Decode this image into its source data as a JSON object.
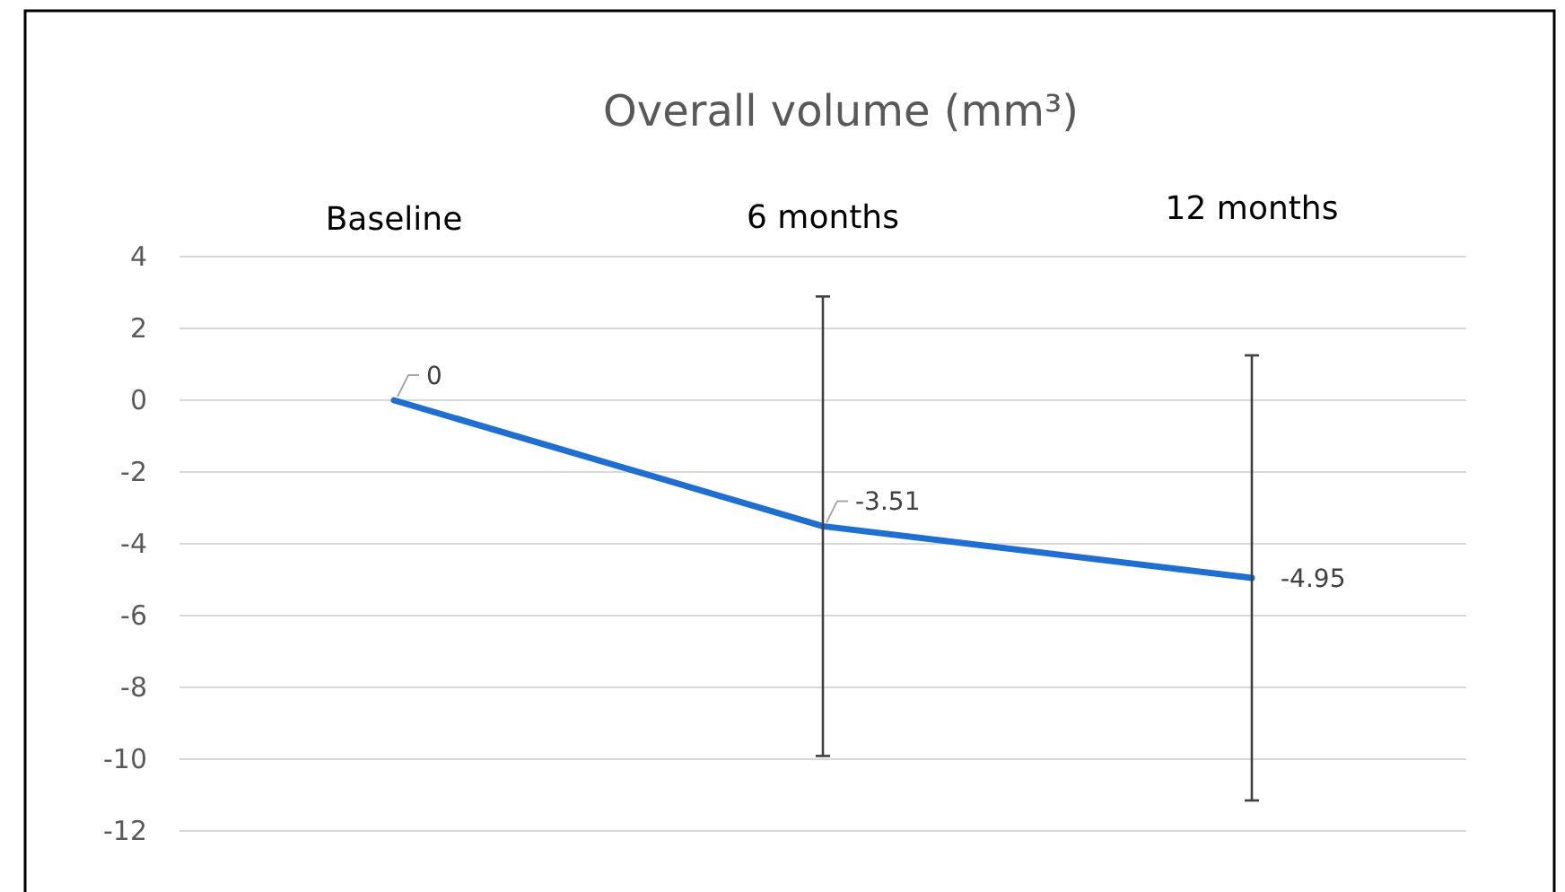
{
  "chart_data": {
    "type": "line",
    "title": "Overall volume (mm³)",
    "categories": [
      "Baseline",
      "6 months",
      "12 months"
    ],
    "series": [
      {
        "color": "#1f6fd0",
        "values": [
          0,
          -3.51,
          -4.95
        ],
        "errors": [
          null,
          6.4,
          6.2
        ]
      }
    ],
    "ylim": [
      -12,
      4
    ],
    "yticks": [
      -12,
      -10,
      -8,
      -6,
      -4,
      -2,
      0,
      2,
      4
    ],
    "grid": "y",
    "data_labels": true,
    "marker": "none",
    "line_style": "solid"
  }
}
